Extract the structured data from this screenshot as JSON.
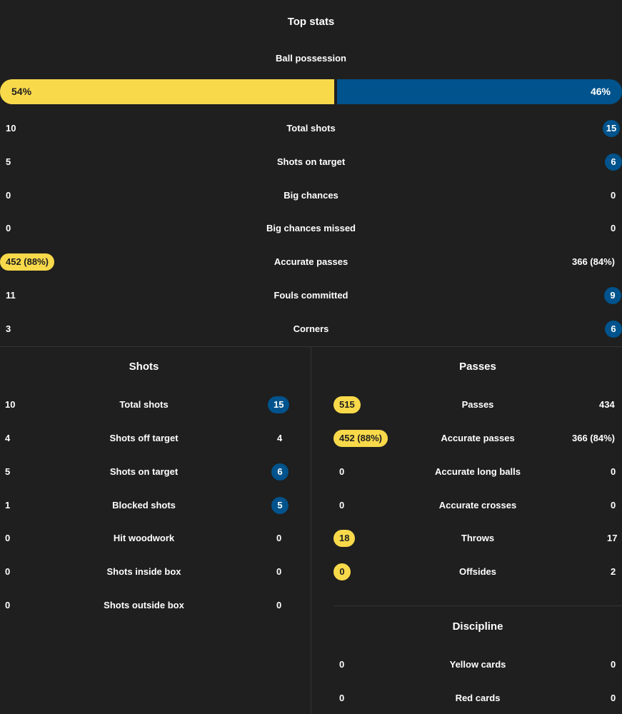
{
  "colors": {
    "home": "#f8d94a",
    "away": "#00538c",
    "background": "#1f1f1f"
  },
  "top_stats": {
    "title": "Top stats",
    "possession": {
      "label": "Ball possession",
      "home": "54%",
      "away": "46%",
      "home_fraction": 0.54
    },
    "rows": [
      {
        "label": "Total shots",
        "home": "10",
        "away": "15"
      },
      {
        "label": "Shots on target",
        "home": "5",
        "away": "6"
      },
      {
        "label": "Big chances",
        "home": "0",
        "away": "0"
      },
      {
        "label": "Big chances missed",
        "home": "0",
        "away": "0"
      },
      {
        "label": "Accurate passes",
        "home": "452 (88%)",
        "away": "366 (84%)"
      },
      {
        "label": "Fouls committed",
        "home": "11",
        "away": "9"
      },
      {
        "label": "Corners",
        "home": "3",
        "away": "6"
      }
    ]
  },
  "shots": {
    "title": "Shots",
    "rows": [
      {
        "label": "Total shots",
        "home": "10",
        "away": "15"
      },
      {
        "label": "Shots off target",
        "home": "4",
        "away": "4"
      },
      {
        "label": "Shots on target",
        "home": "5",
        "away": "6"
      },
      {
        "label": "Blocked shots",
        "home": "1",
        "away": "5"
      },
      {
        "label": "Hit woodwork",
        "home": "0",
        "away": "0"
      },
      {
        "label": "Shots inside box",
        "home": "0",
        "away": "0"
      },
      {
        "label": "Shots outside box",
        "home": "0",
        "away": "0"
      }
    ]
  },
  "passes": {
    "title": "Passes",
    "rows": [
      {
        "label": "Passes",
        "home": "515",
        "away": "434"
      },
      {
        "label": "Accurate passes",
        "home": "452 (88%)",
        "away": "366 (84%)"
      },
      {
        "label": "Accurate long balls",
        "home": "0",
        "away": "0"
      },
      {
        "label": "Accurate crosses",
        "home": "0",
        "away": "0"
      },
      {
        "label": "Throws",
        "home": "18",
        "away": "17"
      },
      {
        "label": "Offsides",
        "home": "0",
        "away": "2"
      }
    ]
  },
  "discipline": {
    "title": "Discipline",
    "rows": [
      {
        "label": "Yellow cards",
        "home": "0",
        "away": "0"
      },
      {
        "label": "Red cards",
        "home": "0",
        "away": "0"
      }
    ]
  }
}
